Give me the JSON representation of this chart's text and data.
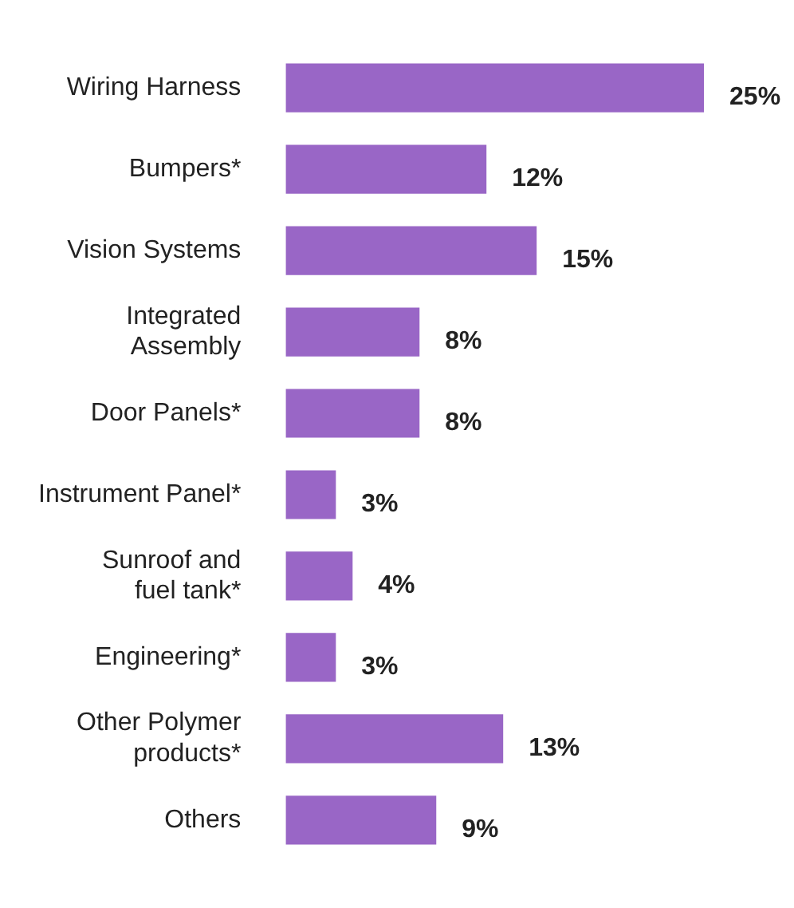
{
  "chart_data": {
    "type": "bar",
    "orientation": "horizontal",
    "categories": [
      "Wiring Harness",
      "Bumpers*",
      "Vision Systems",
      "Integrated\nAssembly",
      "Door Panels*",
      "Instrument Panel*",
      "Sunroof and\nfuel tank*",
      "Engineering*",
      "Other Polymer\nproducts*",
      "Others"
    ],
    "values": [
      25,
      12,
      15,
      8,
      8,
      3,
      4,
      3,
      13,
      9
    ],
    "value_labels": [
      "25%",
      "12%",
      "15%",
      "8%",
      "8%",
      "3%",
      "4%",
      "3%",
      "13%",
      "9%"
    ],
    "color": "#9966c6"
  }
}
